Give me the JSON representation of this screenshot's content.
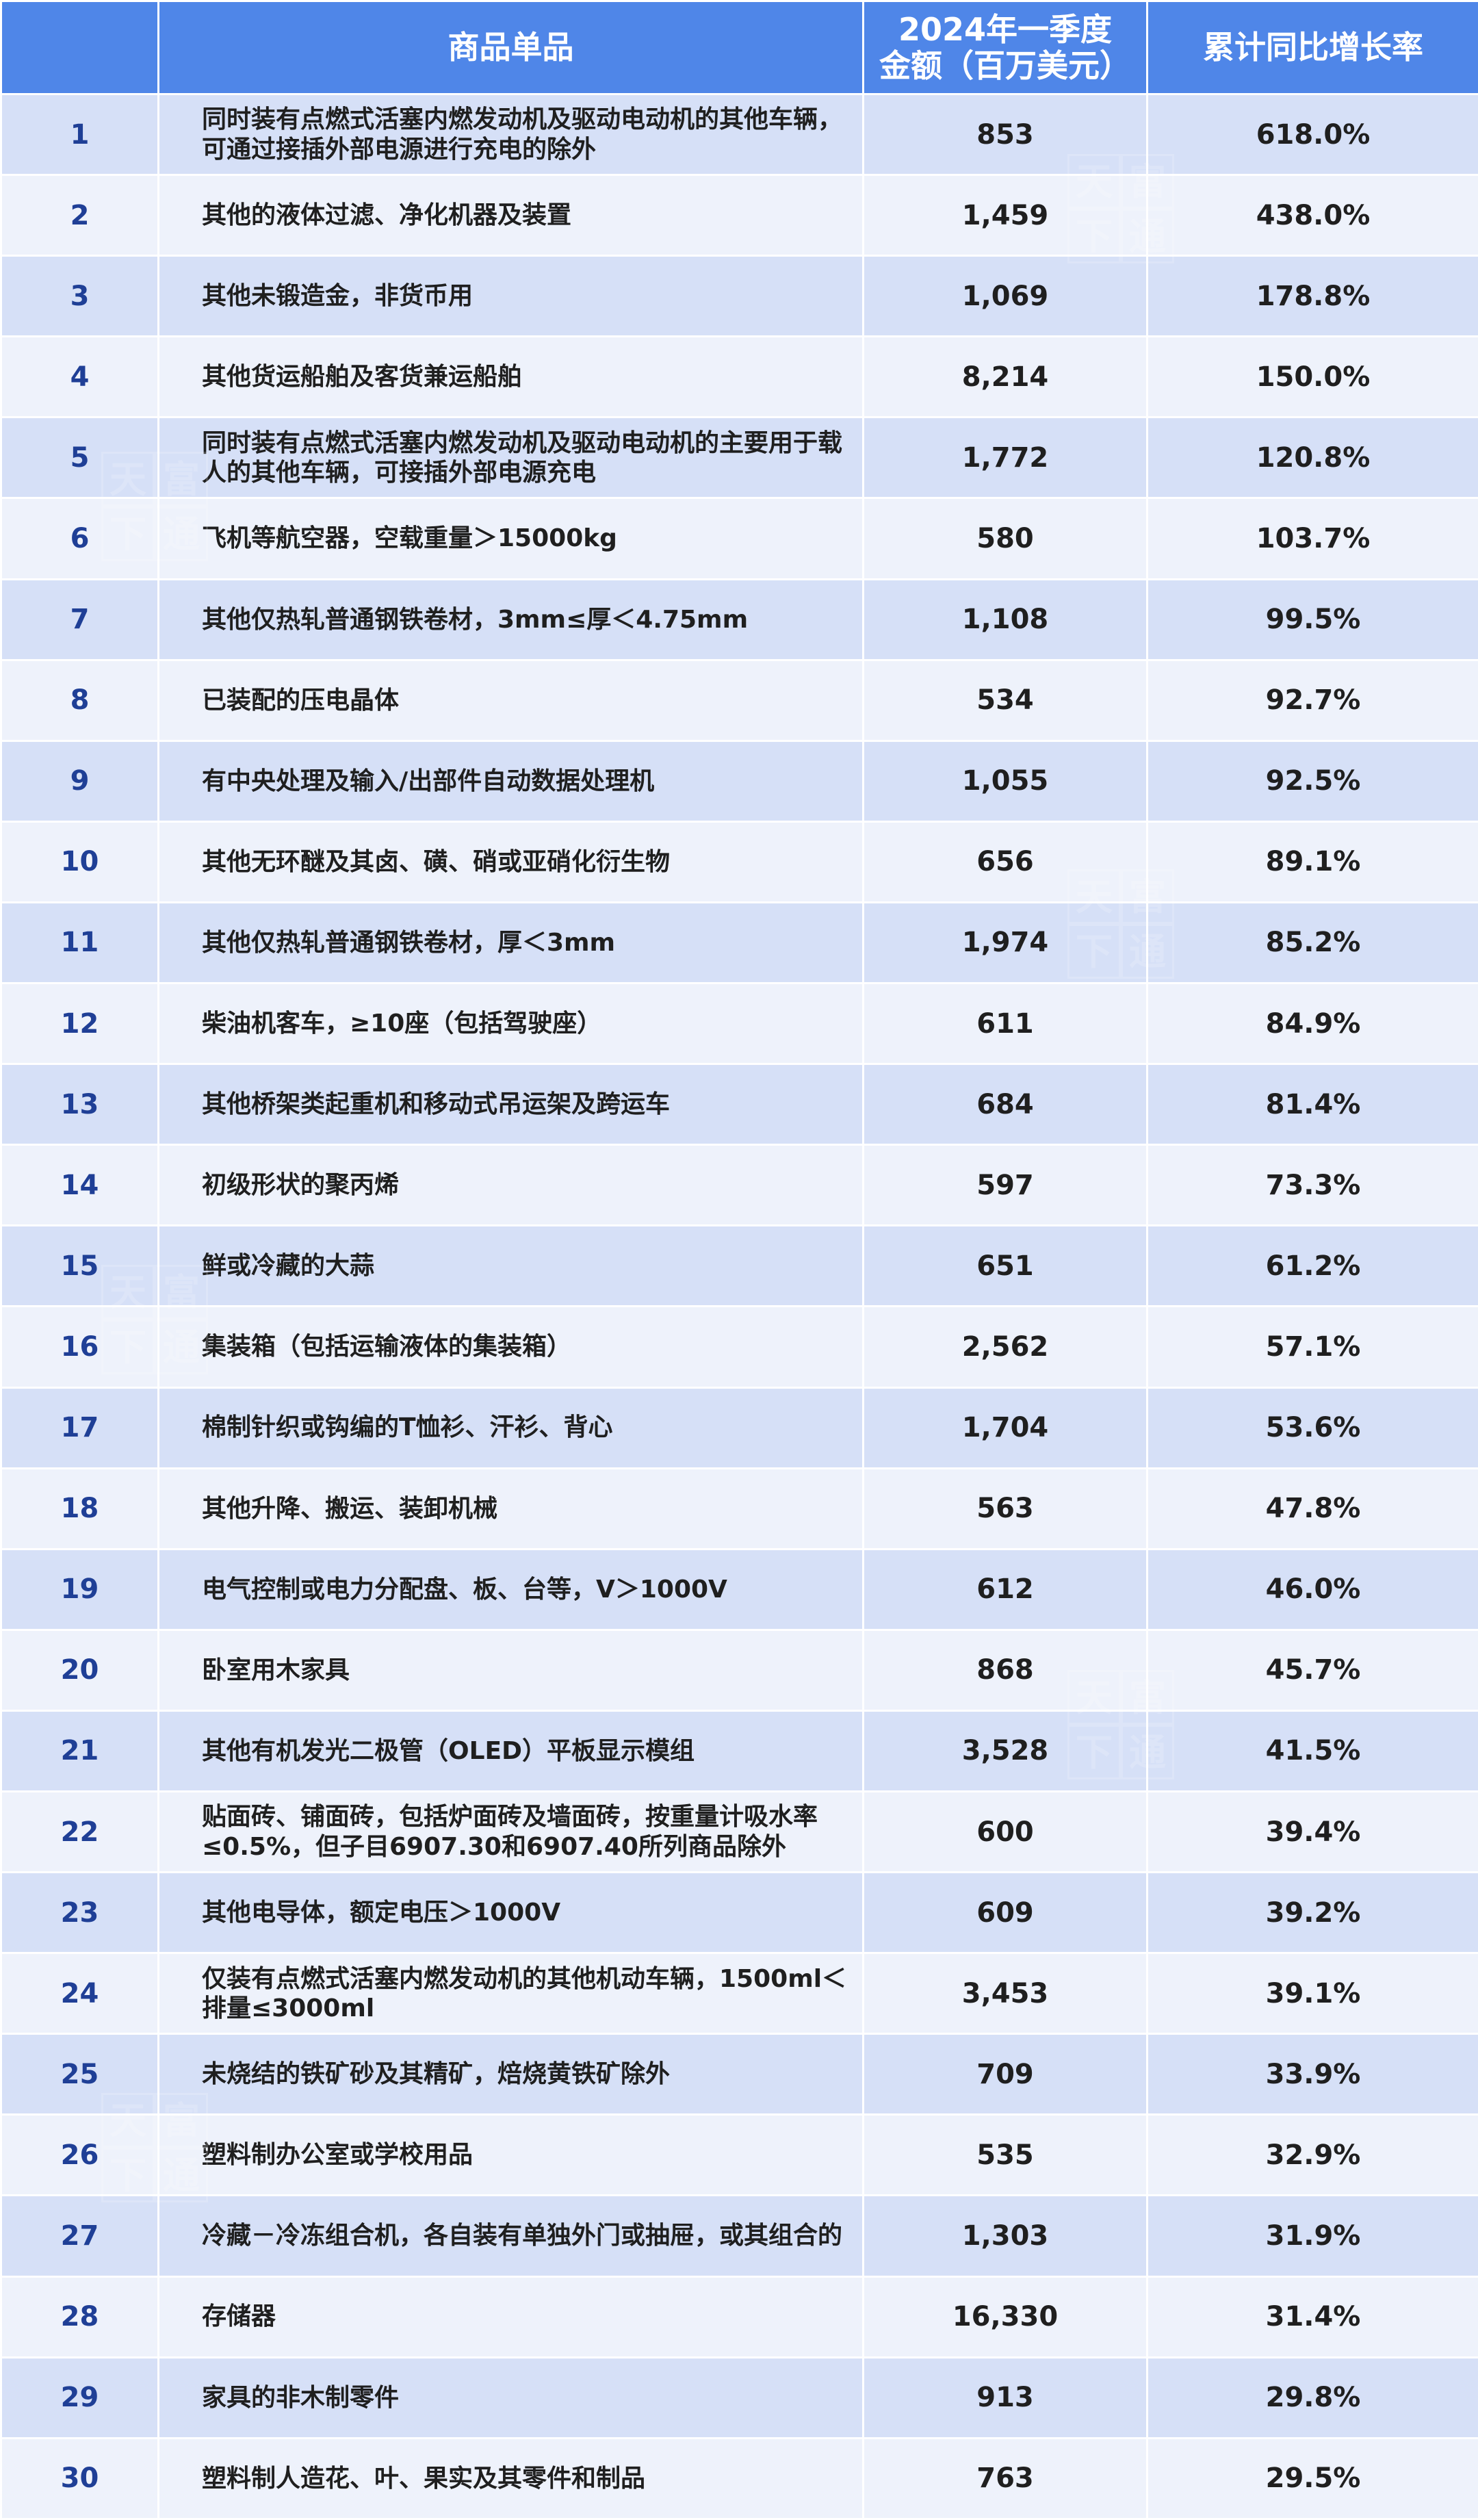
{
  "header": {
    "col_item": "商品单品",
    "col_amount_line1": "2024年一季度",
    "col_amount_line2": "金额（百万美元）",
    "col_growth": "累计同比增长率"
  },
  "rows": [
    {
      "rank": "1",
      "name": "同时装有点燃式活塞内燃发动机及驱动电动机的其他车辆，可通过接插外部电源进行充电的除外",
      "amount": "853",
      "growth": "618.0%"
    },
    {
      "rank": "2",
      "name": "其他的液体过滤、净化机器及装置",
      "amount": "1,459",
      "growth": "438.0%"
    },
    {
      "rank": "3",
      "name": "其他未锻造金，非货币用",
      "amount": "1,069",
      "growth": "178.8%"
    },
    {
      "rank": "4",
      "name": "其他货运船舶及客货兼运船舶",
      "amount": "8,214",
      "growth": "150.0%"
    },
    {
      "rank": "5",
      "name": "同时装有点燃式活塞内燃发动机及驱动电动机的主要用于载人的其他车辆，可接插外部电源充电",
      "amount": "1,772",
      "growth": "120.8%"
    },
    {
      "rank": "6",
      "name": "飞机等航空器，空载重量＞15000kg",
      "amount": "580",
      "growth": "103.7%"
    },
    {
      "rank": "7",
      "name": "其他仅热轧普通钢铁卷材，3mm≤厚＜4.75mm",
      "amount": "1,108",
      "growth": "99.5%"
    },
    {
      "rank": "8",
      "name": "已装配的压电晶体",
      "amount": "534",
      "growth": "92.7%"
    },
    {
      "rank": "9",
      "name": "有中央处理及输入/出部件自动数据处理机",
      "amount": "1,055",
      "growth": "92.5%"
    },
    {
      "rank": "10",
      "name": "其他无环醚及其卤、磺、硝或亚硝化衍生物",
      "amount": "656",
      "growth": "89.1%"
    },
    {
      "rank": "11",
      "name": "其他仅热轧普通钢铁卷材，厚＜3mm",
      "amount": "1,974",
      "growth": "85.2%"
    },
    {
      "rank": "12",
      "name": "柴油机客车，≥10座（包括驾驶座）",
      "amount": "611",
      "growth": "84.9%"
    },
    {
      "rank": "13",
      "name": "其他桥架类起重机和移动式吊运架及跨运车",
      "amount": "684",
      "growth": "81.4%"
    },
    {
      "rank": "14",
      "name": "初级形状的聚丙烯",
      "amount": "597",
      "growth": "73.3%"
    },
    {
      "rank": "15",
      "name": "鲜或冷藏的大蒜",
      "amount": "651",
      "growth": "61.2%"
    },
    {
      "rank": "16",
      "name": "集装箱（包括运输液体的集装箱）",
      "amount": "2,562",
      "growth": "57.1%"
    },
    {
      "rank": "17",
      "name": "棉制针织或钩编的T恤衫、汗衫、背心",
      "amount": "1,704",
      "growth": "53.6%"
    },
    {
      "rank": "18",
      "name": "其他升降、搬运、装卸机械",
      "amount": "563",
      "growth": "47.8%"
    },
    {
      "rank": "19",
      "name": "电气控制或电力分配盘、板、台等，V＞1000V",
      "amount": "612",
      "growth": "46.0%"
    },
    {
      "rank": "20",
      "name": "卧室用木家具",
      "amount": "868",
      "growth": "45.7%"
    },
    {
      "rank": "21",
      "name": "其他有机发光二极管（OLED）平板显示模组",
      "amount": "3,528",
      "growth": "41.5%"
    },
    {
      "rank": "22",
      "name": "贴面砖、铺面砖，包括炉面砖及墙面砖，按重量计吸水率≤0.5%，但子目6907.30和6907.40所列商品除外",
      "amount": "600",
      "growth": "39.4%"
    },
    {
      "rank": "23",
      "name": "其他电导体，额定电压＞1000V",
      "amount": "609",
      "growth": "39.2%"
    },
    {
      "rank": "24",
      "name": "仅装有点燃式活塞内燃发动机的其他机动车辆，1500ml＜排量≤3000ml",
      "amount": "3,453",
      "growth": "39.1%"
    },
    {
      "rank": "25",
      "name": "未烧结的铁矿砂及其精矿，焙烧黄铁矿除外",
      "amount": "709",
      "growth": "33.9%"
    },
    {
      "rank": "26",
      "name": "塑料制办公室或学校用品",
      "amount": "535",
      "growth": "32.9%"
    },
    {
      "rank": "27",
      "name": "冷藏－冷冻组合机，各自装有单独外门或抽屉，或其组合的",
      "amount": "1,303",
      "growth": "31.9%"
    },
    {
      "rank": "28",
      "name": "存储器",
      "amount": "16,330",
      "growth": "31.4%"
    },
    {
      "rank": "29",
      "name": "家具的非木制零件",
      "amount": "913",
      "growth": "29.8%"
    },
    {
      "rank": "30",
      "name": "塑料制人造花、叶、果实及其零件和制品",
      "amount": "763",
      "growth": "29.5%"
    }
  ],
  "watermark": {
    "chars": [
      "天",
      "富",
      "下",
      "通"
    ]
  }
}
